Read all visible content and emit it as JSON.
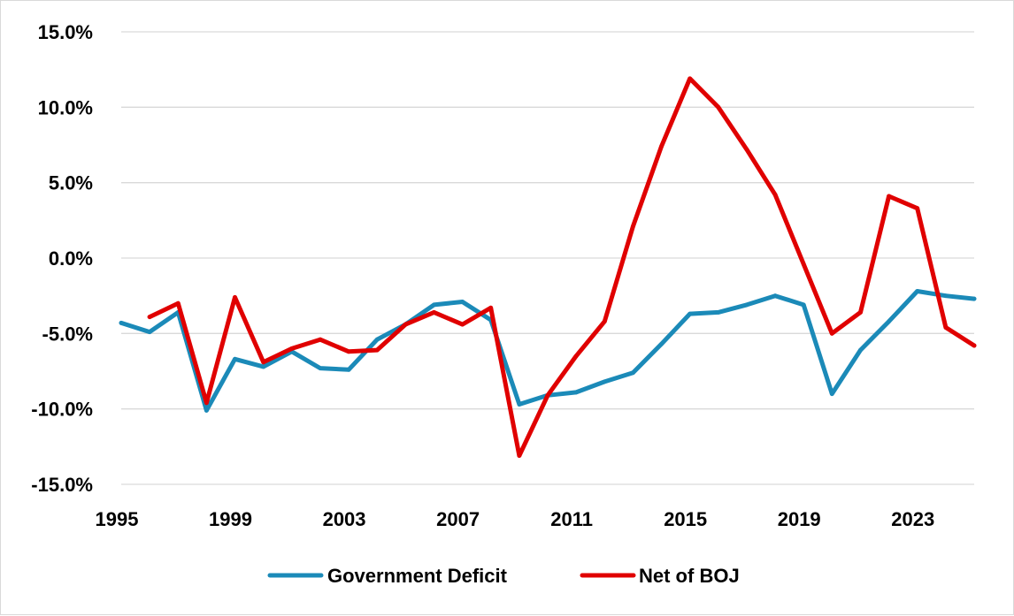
{
  "chart_data": {
    "type": "line",
    "title": "",
    "xlabel": "",
    "ylabel": "",
    "ylim": [
      -15,
      15
    ],
    "xlim": [
      1995,
      2025
    ],
    "y_ticks": [
      15,
      10,
      5,
      0,
      -5,
      -10,
      -15
    ],
    "y_tick_labels": [
      "15.0%",
      "10.0%",
      "5.0%",
      "0.0%",
      "-5.0%",
      "-10.0%",
      "-15.0%"
    ],
    "x_ticks": [
      1995,
      1999,
      2003,
      2007,
      2011,
      2015,
      2019,
      2023
    ],
    "x_tick_labels": [
      "1995",
      "1999",
      "2003",
      "2007",
      "2011",
      "2015",
      "2019",
      "2023"
    ],
    "grid": "horizontal",
    "legend_position": "bottom",
    "series": [
      {
        "name": "Government Deficit",
        "color": "#1b8ab8",
        "x": [
          1995,
          1996,
          1997,
          1998,
          1999,
          2000,
          2001,
          2002,
          2003,
          2004,
          2005,
          2006,
          2007,
          2008,
          2009,
          2010,
          2011,
          2012,
          2013,
          2014,
          2015,
          2016,
          2017,
          2018,
          2019,
          2020,
          2021,
          2022,
          2023,
          2024,
          2025
        ],
        "values": [
          -4.3,
          -4.9,
          -3.6,
          -10.1,
          -6.7,
          -7.2,
          -6.2,
          -7.3,
          -7.4,
          -5.4,
          -4.4,
          -3.1,
          -2.9,
          -4.1,
          -9.7,
          -9.1,
          -8.9,
          -8.2,
          -7.6,
          -5.7,
          -3.7,
          -3.6,
          -3.1,
          -2.5,
          -3.1,
          -9.0,
          -6.1,
          -4.2,
          -2.2,
          -2.5,
          -2.7
        ]
      },
      {
        "name": "Net of BOJ",
        "color": "#e00000",
        "x": [
          1996,
          1997,
          1998,
          1999,
          2000,
          2001,
          2002,
          2003,
          2004,
          2005,
          2006,
          2007,
          2008,
          2009,
          2010,
          2011,
          2012,
          2013,
          2014,
          2015,
          2016,
          2017,
          2018,
          2019,
          2020,
          2021,
          2022,
          2023,
          2024,
          2025
        ],
        "values": [
          -3.9,
          -3.0,
          -9.6,
          -2.6,
          -6.9,
          -6.0,
          -5.4,
          -6.2,
          -6.1,
          -4.4,
          -3.6,
          -4.4,
          -3.3,
          -13.1,
          -9.1,
          -6.5,
          -4.2,
          2.1,
          7.4,
          11.9,
          10.0,
          7.2,
          4.2,
          -0.4,
          -5.0,
          -3.6,
          4.1,
          3.3,
          -4.6,
          -5.8
        ]
      }
    ]
  }
}
